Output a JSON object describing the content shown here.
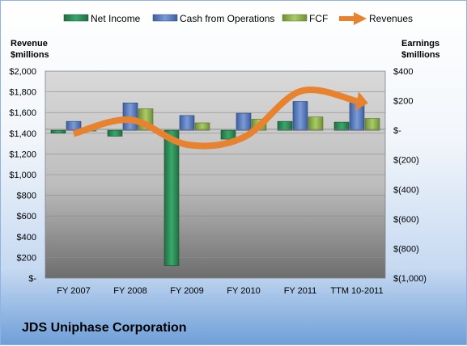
{
  "company": "JDS Uniphase Corporation",
  "chart_data": {
    "type": "bar",
    "categories": [
      "FY 2007",
      "FY 2008",
      "FY 2009",
      "FY 2010",
      "FY 2011",
      "TTM 10-2011"
    ],
    "left_axis": {
      "label_line1": "Revenue",
      "label_line2": "$millions",
      "ylim": [
        0,
        2000
      ],
      "ticks": [
        0,
        200,
        400,
        600,
        800,
        1000,
        1200,
        1400,
        1600,
        1800,
        2000
      ],
      "tick_labels": [
        "$-",
        "$200",
        "$400",
        "$600",
        "$800",
        "$1,000",
        "$1,200",
        "$1,400",
        "$1,600",
        "$1,800",
        "$2,000"
      ]
    },
    "right_axis": {
      "label_line1": "Earnings",
      "label_line2": "$millions",
      "ylim": [
        -1000,
        400
      ],
      "ticks": [
        -1000,
        -800,
        -600,
        -400,
        -200,
        0,
        200,
        400
      ],
      "tick_labels": [
        "$(1,000)",
        "$(800)",
        "$(600)",
        "$(400)",
        "$(200)",
        "$-",
        "$200",
        "$400"
      ]
    },
    "series": [
      {
        "name": "Net Income",
        "axis": "right",
        "kind": "bar",
        "color": "#2e8b57",
        "values": [
          -20,
          -40,
          -915,
          -60,
          60,
          55
        ]
      },
      {
        "name": "Cash from Operations",
        "axis": "right",
        "kind": "bar",
        "color": "#5b7fc7",
        "values": [
          60,
          185,
          100,
          115,
          195,
          185
        ]
      },
      {
        "name": "FCF",
        "axis": "right",
        "kind": "bar",
        "color": "#92b84f",
        "values": [
          -5,
          145,
          50,
          75,
          90,
          80
        ]
      },
      {
        "name": "Revenues",
        "axis": "left",
        "kind": "line",
        "color": "#e8822e",
        "values": [
          1395,
          1530,
          1290,
          1360,
          1805,
          1710
        ]
      }
    ],
    "legend_position": "top",
    "grid": true
  }
}
